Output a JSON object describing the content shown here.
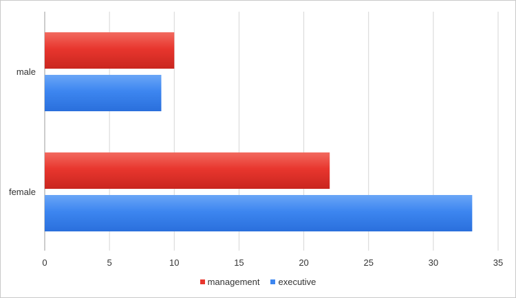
{
  "chart_data": {
    "type": "bar",
    "orientation": "horizontal",
    "categories": [
      "male",
      "female"
    ],
    "series": [
      {
        "name": "management",
        "values": [
          10,
          22
        ],
        "color": "#e8362e"
      },
      {
        "name": "executive",
        "values": [
          9,
          33
        ],
        "color": "#3d86f0"
      }
    ],
    "xlim": [
      0,
      35
    ],
    "xticks": [
      0,
      5,
      10,
      15,
      20,
      25,
      30,
      35
    ],
    "grid": true,
    "legend_position": "bottom",
    "title": "",
    "xlabel": "",
    "ylabel": ""
  }
}
